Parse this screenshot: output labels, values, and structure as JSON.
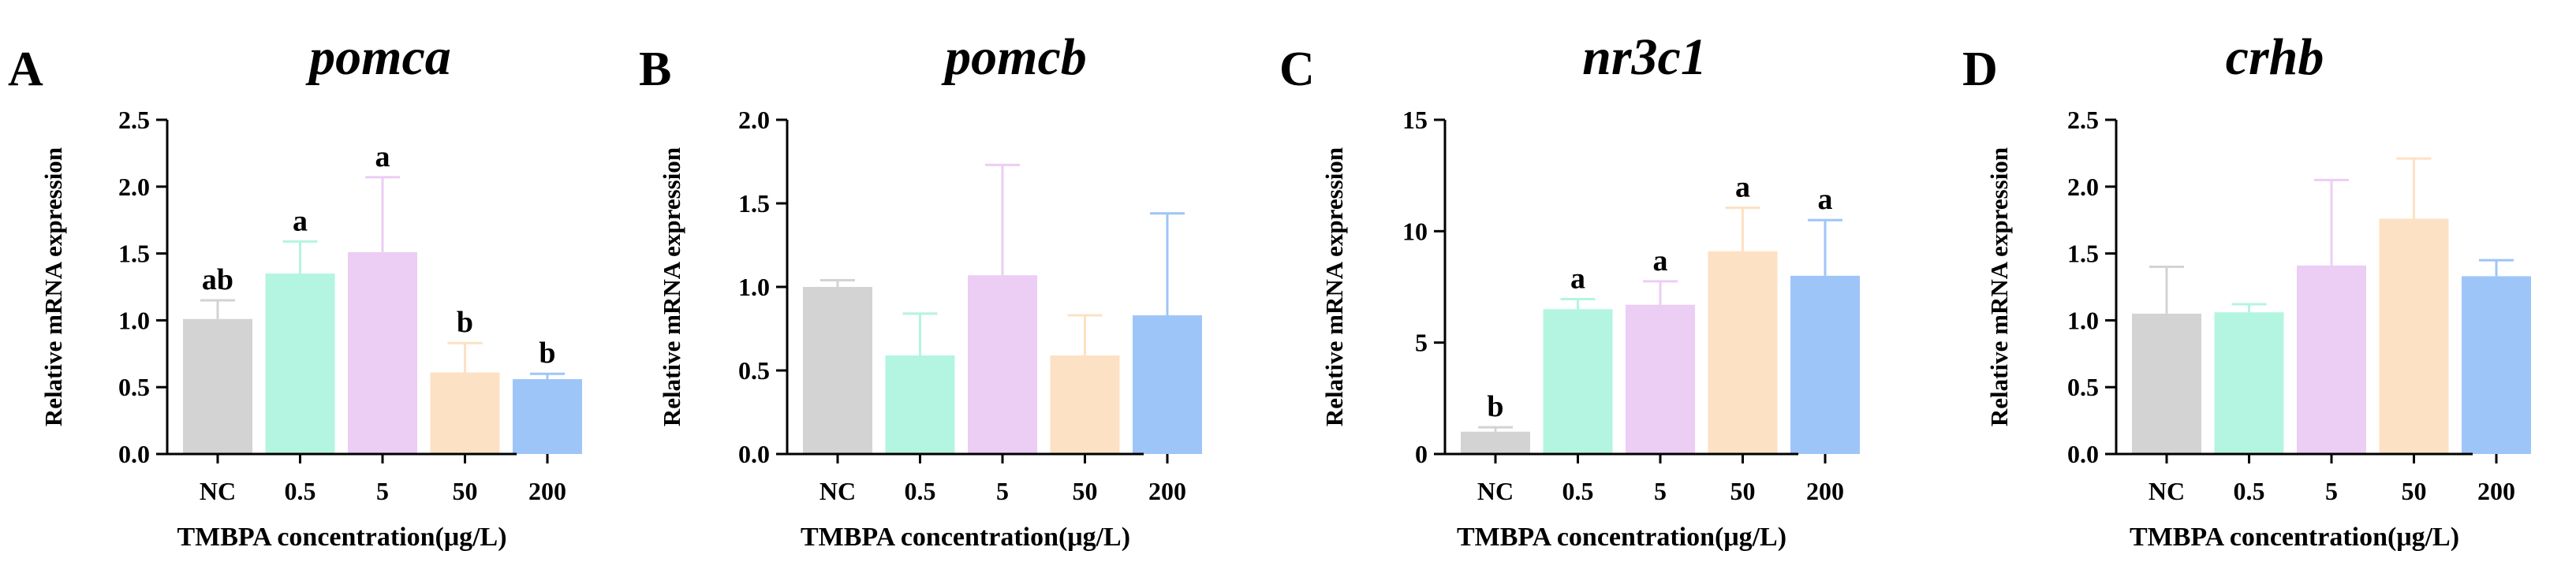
{
  "chart_data": [
    {
      "type": "bar",
      "panel_letter": "A",
      "title": "pomca",
      "xlabel": "TMBPA concentration(μg/L)",
      "ylabel": "Relative mRNA expression",
      "categories": [
        "NC",
        "0.5",
        "5",
        "50",
        "200"
      ],
      "values": [
        1.01,
        1.35,
        1.51,
        0.61,
        0.56
      ],
      "errors": [
        0.14,
        0.24,
        0.56,
        0.22,
        0.04
      ],
      "labels": [
        "ab",
        "a",
        "a",
        "b",
        "b"
      ],
      "colors": [
        "#d3d3d3",
        "#b3f5e0",
        "#eccdf4",
        "#fde1c4",
        "#9ec5f8"
      ],
      "ylim": [
        0,
        2.5
      ],
      "yticks": [
        0.0,
        0.5,
        1.0,
        1.5,
        2.0,
        2.5
      ],
      "ytick_labels": [
        "0.0",
        "0.5",
        "1.0",
        "1.5",
        "2.0",
        "2.5"
      ]
    },
    {
      "type": "bar",
      "panel_letter": "B",
      "title": "pomcb",
      "xlabel": "TMBPA concentration(μg/L)",
      "ylabel": "Relative mRNA expression",
      "categories": [
        "NC",
        "0.5",
        "5",
        "50",
        "200"
      ],
      "values": [
        1.0,
        0.59,
        1.07,
        0.59,
        0.83
      ],
      "errors": [
        0.04,
        0.25,
        0.66,
        0.24,
        0.61
      ],
      "labels": [
        "",
        "",
        "",
        "",
        ""
      ],
      "colors": [
        "#d3d3d3",
        "#b3f5e0",
        "#eccdf4",
        "#fde1c4",
        "#9ec5f8"
      ],
      "ylim": [
        0,
        2.0
      ],
      "yticks": [
        0.0,
        0.5,
        1.0,
        1.5,
        2.0
      ],
      "ytick_labels": [
        "0.0",
        "0.5",
        "1.0",
        "1.5",
        "2.0"
      ]
    },
    {
      "type": "bar",
      "panel_letter": "C",
      "title": "nr3c1",
      "xlabel": "TMBPA concentration(μg/L)",
      "ylabel": "Relative mRNA expression",
      "categories": [
        "NC",
        "0.5",
        "5",
        "50",
        "200"
      ],
      "values": [
        1.0,
        6.5,
        6.7,
        9.1,
        8.0
      ],
      "errors": [
        0.2,
        0.45,
        1.05,
        1.95,
        2.5
      ],
      "labels": [
        "b",
        "a",
        "a",
        "a",
        "a"
      ],
      "colors": [
        "#d3d3d3",
        "#b3f5e0",
        "#eccdf4",
        "#fde1c4",
        "#9ec5f8"
      ],
      "ylim": [
        0,
        15
      ],
      "yticks": [
        0,
        5,
        10,
        15
      ],
      "ytick_labels": [
        "0",
        "5",
        "10",
        "15"
      ]
    },
    {
      "type": "bar",
      "panel_letter": "D",
      "title": "crhb",
      "xlabel": "TMBPA concentration(μg/L)",
      "ylabel": "Relative mRNA expression",
      "categories": [
        "NC",
        "0.5",
        "5",
        "50",
        "200"
      ],
      "values": [
        1.05,
        1.06,
        1.41,
        1.76,
        1.33
      ],
      "errors": [
        0.35,
        0.06,
        0.64,
        0.45,
        0.12
      ],
      "labels": [
        "",
        "",
        "",
        "",
        ""
      ],
      "colors": [
        "#d3d3d3",
        "#b3f5e0",
        "#eccdf4",
        "#fde1c4",
        "#9ec5f8"
      ],
      "ylim": [
        0,
        2.5
      ],
      "yticks": [
        0.0,
        0.5,
        1.0,
        1.5,
        2.0,
        2.5
      ],
      "ytick_labels": [
        "0.0",
        "0.5",
        "1.0",
        "1.5",
        "2.0",
        "2.5"
      ]
    }
  ]
}
